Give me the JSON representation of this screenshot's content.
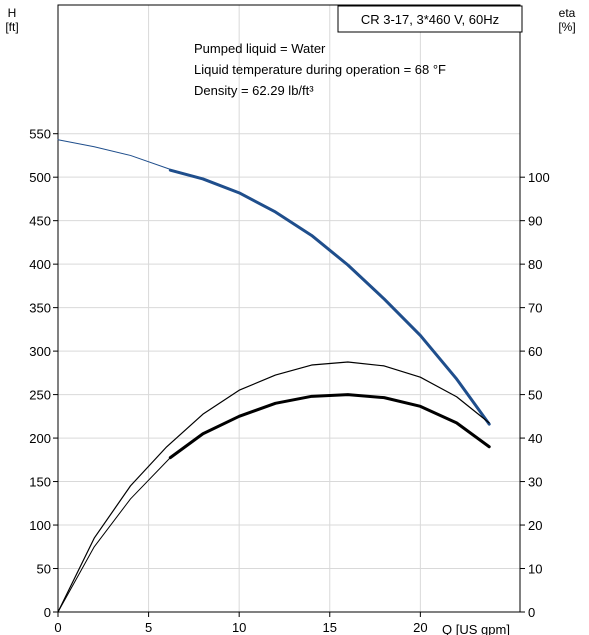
{
  "chart_data": {
    "type": "line",
    "title": "CR 3-17, 3*460 V, 60Hz",
    "annotations": [
      "Pumped liquid = Water",
      "Liquid temperature during operation = 68 °F",
      "Density = 62.29 lb/ft³"
    ],
    "xlabel": "Q [US gpm]",
    "ylabel_left": [
      "H",
      "[ft]"
    ],
    "ylabel_right": [
      "eta",
      "[%]"
    ],
    "x_ticks": [
      0,
      5,
      10,
      15,
      20
    ],
    "y_left_ticks": [
      0,
      50,
      100,
      150,
      200,
      250,
      300,
      350,
      400,
      450,
      500,
      550
    ],
    "y_right_ticks": [
      0,
      10,
      20,
      30,
      40,
      50,
      60,
      70,
      80,
      90,
      100
    ],
    "xlim": [
      0,
      25.5
    ],
    "ylim_left": [
      0,
      698
    ],
    "ylim_right": [
      0,
      139.6
    ],
    "grid": true,
    "colors": {
      "head": "#1f4e8c",
      "efficiency": "#000000",
      "axes": "#000000",
      "grid": "#d9d9d9"
    },
    "series": [
      {
        "axis": "left",
        "color": "#1f4e8c",
        "width": 3,
        "points": [
          [
            6.2,
            508
          ],
          [
            8,
            498
          ],
          [
            10,
            482
          ],
          [
            12,
            460
          ],
          [
            14,
            433
          ],
          [
            16,
            399
          ],
          [
            18,
            360
          ],
          [
            20,
            318
          ],
          [
            22,
            268
          ],
          [
            23.8,
            216
          ]
        ]
      },
      {
        "axis": "left",
        "color": "#1f4e8c",
        "width": 1,
        "points": [
          [
            0,
            543
          ],
          [
            2,
            535
          ],
          [
            4,
            525
          ],
          [
            6.2,
            509
          ]
        ]
      },
      {
        "axis": "right",
        "color": "#000000",
        "width": 1.2,
        "points": [
          [
            0,
            0
          ],
          [
            2,
            17
          ],
          [
            4,
            29
          ],
          [
            6,
            38
          ],
          [
            8,
            45.5
          ],
          [
            10,
            51
          ],
          [
            12,
            54.5
          ],
          [
            14,
            56.8
          ],
          [
            16,
            57.5
          ],
          [
            18,
            56.6
          ],
          [
            20,
            54
          ],
          [
            22,
            49.5
          ],
          [
            23.8,
            43.5
          ]
        ]
      },
      {
        "axis": "right",
        "color": "#000000",
        "width": 3,
        "points": [
          [
            6.2,
            35.5
          ],
          [
            8,
            41
          ],
          [
            10,
            45
          ],
          [
            12,
            48
          ],
          [
            14,
            49.6
          ],
          [
            16,
            50
          ],
          [
            18,
            49.3
          ],
          [
            20,
            47.3
          ],
          [
            22,
            43.5
          ],
          [
            23.8,
            38
          ]
        ]
      },
      {
        "axis": "right",
        "color": "#000000",
        "width": 1,
        "points": [
          [
            0,
            0
          ],
          [
            2,
            15
          ],
          [
            4,
            26
          ],
          [
            6.2,
            35.5
          ]
        ]
      }
    ]
  }
}
